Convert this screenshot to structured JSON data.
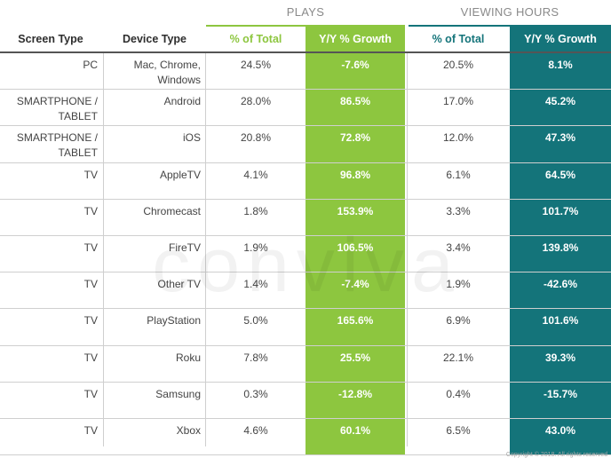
{
  "headers": {
    "plays": "PLAYS",
    "viewing_hours": "VIEWING HOURS",
    "screen_type": "Screen Type",
    "device_type": "Device Type",
    "plays_share": "% of Total",
    "plays_growth": "Y/Y % Growth",
    "hours_share": "% of Total",
    "hours_growth": "Y/Y % Growth"
  },
  "watermark": "conviva",
  "copyright": "Copyright © 2018. All rights reserved",
  "colors": {
    "plays": "#8dc63f",
    "viewing_hours": "#14747a"
  },
  "chart_data": {
    "type": "table",
    "columns": [
      "Screen Type",
      "Device Type",
      "Plays % of Total",
      "Plays Y/Y % Growth",
      "Viewing Hours % of Total",
      "Viewing Hours Y/Y % Growth"
    ],
    "rows": [
      {
        "screen": "PC",
        "device": "Mac, Chrome, Windows",
        "plays_share": "24.5%",
        "plays_growth": "-7.6%",
        "hours_share": "20.5%",
        "hours_growth": "8.1%"
      },
      {
        "screen": "SMARTPHONE / TABLET",
        "device": "Android",
        "plays_share": "28.0%",
        "plays_growth": "86.5%",
        "hours_share": "17.0%",
        "hours_growth": "45.2%"
      },
      {
        "screen": "SMARTPHONE / TABLET",
        "device": "iOS",
        "plays_share": "20.8%",
        "plays_growth": "72.8%",
        "hours_share": "12.0%",
        "hours_growth": "47.3%"
      },
      {
        "screen": "TV",
        "device": "AppleTV",
        "plays_share": "4.1%",
        "plays_growth": "96.8%",
        "hours_share": "6.1%",
        "hours_growth": "64.5%"
      },
      {
        "screen": "TV",
        "device": "Chromecast",
        "plays_share": "1.8%",
        "plays_growth": "153.9%",
        "hours_share": "3.3%",
        "hours_growth": "101.7%"
      },
      {
        "screen": "TV",
        "device": "FireTV",
        "plays_share": "1.9%",
        "plays_growth": "106.5%",
        "hours_share": "3.4%",
        "hours_growth": "139.8%"
      },
      {
        "screen": "TV",
        "device": "Other TV",
        "plays_share": "1.4%",
        "plays_growth": "-7.4%",
        "hours_share": "1.9%",
        "hours_growth": "-42.6%"
      },
      {
        "screen": "TV",
        "device": "PlayStation",
        "plays_share": "5.0%",
        "plays_growth": "165.6%",
        "hours_share": "6.9%",
        "hours_growth": "101.6%"
      },
      {
        "screen": "TV",
        "device": "Roku",
        "plays_share": "7.8%",
        "plays_growth": "25.5%",
        "hours_share": "22.1%",
        "hours_growth": "39.3%"
      },
      {
        "screen": "TV",
        "device": "Samsung",
        "plays_share": "0.3%",
        "plays_growth": "-12.8%",
        "hours_share": "0.4%",
        "hours_growth": "-15.7%"
      },
      {
        "screen": "TV",
        "device": "Xbox",
        "plays_share": "4.6%",
        "plays_growth": "60.1%",
        "hours_share": "6.5%",
        "hours_growth": "43.0%"
      }
    ]
  }
}
